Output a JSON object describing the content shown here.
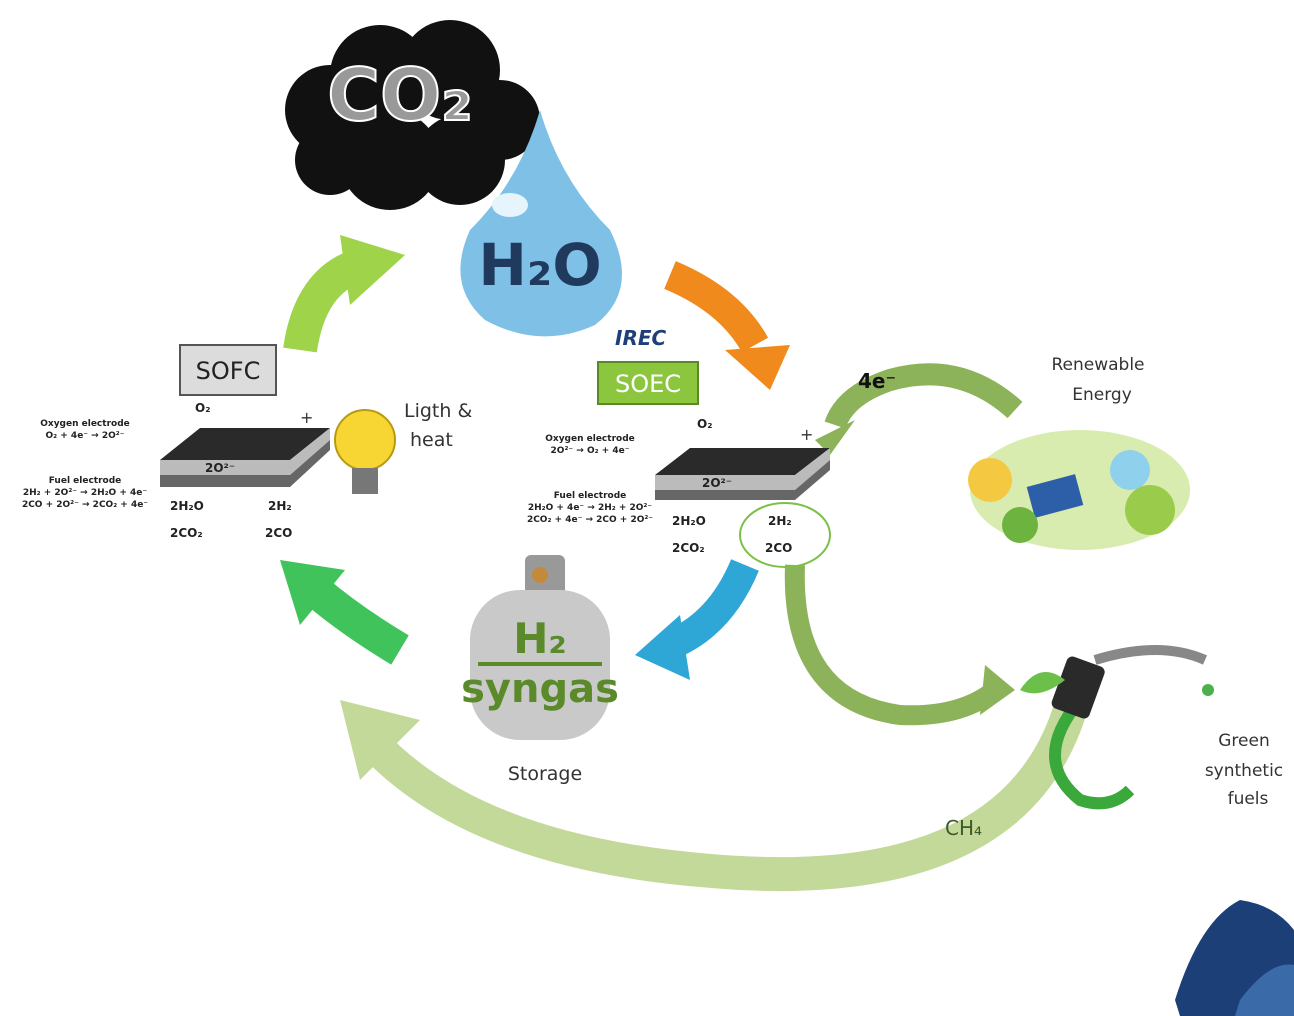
{
  "molecules": {
    "co2": "CO₂",
    "h2o": "H₂O",
    "ch4": "CH₄",
    "electrons": "4e⁻"
  },
  "sofc": {
    "label": "SOFC",
    "output": [
      "Ligth &",
      "heat"
    ],
    "polarity": "+",
    "oxygen_electrode": {
      "title": "Oxygen electrode",
      "reaction": "O₂ + 4e⁻ → 2O²⁻"
    },
    "fuel_electrode": {
      "title": "Fuel electrode",
      "reactions": [
        "2H₂ + 2O²⁻ → 2H₂O + 4e⁻",
        "2CO + 2O²⁻ → 2CO₂ + 4e⁻"
      ]
    },
    "species": {
      "o2": "O₂",
      "ion": "2O²⁻",
      "h2o": "2H₂O",
      "co2": "2CO₂",
      "h2": "2H₂",
      "co": "2CO"
    }
  },
  "soec": {
    "label": "SOEC",
    "logo": "IREC",
    "polarity": "+",
    "oxygen_electrode": {
      "title": "Oxygen electrode",
      "reaction": "2O²⁻ → O₂ + 4e⁻"
    },
    "fuel_electrode": {
      "title": "Fuel electrode",
      "reactions": [
        "2H₂O + 4e⁻ → 2H₂ + 2O²⁻",
        "2CO₂ + 4e⁻ → 2CO + 2O²⁻"
      ]
    },
    "species": {
      "o2": "O₂",
      "ion": "2O²⁻",
      "h2o": "2H₂O",
      "co2": "2CO₂",
      "h2": "2H₂",
      "co": "2CO"
    }
  },
  "storage": {
    "contents": [
      "H₂",
      "syngas"
    ],
    "label": "Storage"
  },
  "renewable_energy": [
    "Renewable",
    "Energy"
  ],
  "green_fuels": [
    "Green",
    "synthetic",
    "fuels"
  ]
}
